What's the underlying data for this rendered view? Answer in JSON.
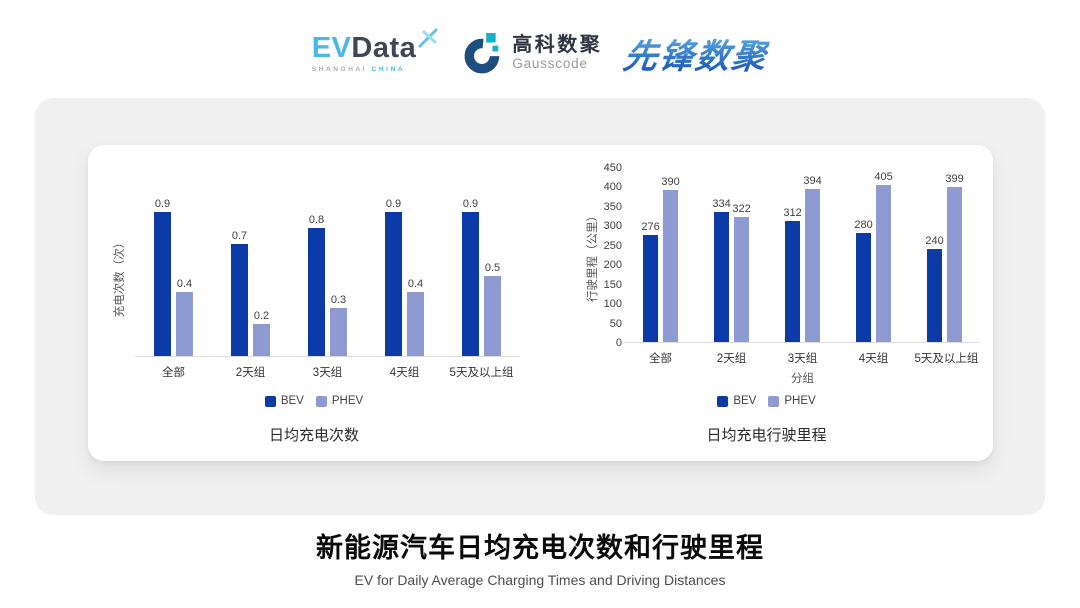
{
  "header": {
    "evdata": {
      "brand_primary": "EV",
      "brand_secondary": "Data",
      "tagline_left": "SHANGHAI",
      "tagline_right": "CHINA"
    },
    "gausscode": {
      "name_cn": "高科数聚",
      "name_en": "Gausscode"
    },
    "pioneer": {
      "name": "先锋数聚"
    }
  },
  "chart_data": [
    {
      "type": "bar",
      "title": "日均充电次数",
      "ylabel": "充电次数（次）",
      "xlabel": "",
      "categories": [
        "全部",
        "2天组",
        "3天组",
        "4天组",
        "5天及以上组"
      ],
      "series": [
        {
          "name": "BEV",
          "color": "#0c3aa6",
          "values": [
            0.9,
            0.7,
            0.8,
            0.9,
            0.9
          ]
        },
        {
          "name": "PHEV",
          "color": "#8e9bd3",
          "values": [
            0.4,
            0.2,
            0.3,
            0.4,
            0.5
          ]
        }
      ],
      "ylim": [
        0,
        1
      ],
      "yticks": [],
      "grid": false,
      "value_labels": true,
      "legend_position": "bottom"
    },
    {
      "type": "bar",
      "title": "日均充电行驶里程",
      "ylabel": "行驶里程（公里）",
      "xlabel": "分组",
      "categories": [
        "全部",
        "2天组",
        "3天组",
        "4天组",
        "5天及以上组"
      ],
      "series": [
        {
          "name": "BEV",
          "color": "#0c3aa6",
          "values": [
            276,
            334,
            312,
            280,
            240
          ]
        },
        {
          "name": "PHEV",
          "color": "#8e9bd3",
          "values": [
            390,
            322,
            394,
            405,
            399
          ]
        }
      ],
      "ylim": [
        0,
        450
      ],
      "yticks": [
        0,
        50,
        100,
        150,
        200,
        250,
        300,
        350,
        400,
        450
      ],
      "grid": false,
      "value_labels": true,
      "legend_position": "bottom"
    }
  ],
  "footer": {
    "title": "新能源汽车日均充电次数和行驶里程",
    "subtitle": "EV for Daily Average Charging Times and Driving Distances"
  },
  "colors": {
    "bev": "#0c3aa6",
    "phev": "#8e9bd3",
    "panel_bg": "#f0f0f1",
    "card_bg": "#ffffff",
    "axis_line": "#dcdcdc"
  }
}
